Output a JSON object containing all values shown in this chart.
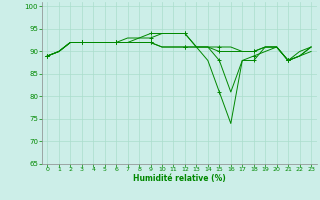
{
  "xlabel": "Humidité relative (%)",
  "bg_color": "#cceee8",
  "grid_color": "#aaddcc",
  "line_color": "#008800",
  "xlim": [
    -0.5,
    23.5
  ],
  "ylim": [
    65,
    101
  ],
  "yticks": [
    65,
    70,
    75,
    80,
    85,
    90,
    95,
    100
  ],
  "xticks": [
    0,
    1,
    2,
    3,
    4,
    5,
    6,
    7,
    8,
    9,
    10,
    11,
    12,
    13,
    14,
    15,
    16,
    17,
    18,
    19,
    20,
    21,
    22,
    23
  ],
  "series": [
    [
      89,
      90,
      92,
      92,
      92,
      92,
      92,
      92,
      92,
      92,
      91,
      91,
      91,
      91,
      91,
      88,
      81,
      88,
      89,
      90,
      91,
      88,
      89,
      90
    ],
    [
      89,
      90,
      92,
      92,
      92,
      92,
      92,
      93,
      93,
      94,
      94,
      94,
      94,
      91,
      91,
      90,
      90,
      90,
      90,
      91,
      91,
      88,
      90,
      91
    ],
    [
      89,
      90,
      92,
      92,
      92,
      92,
      92,
      92,
      93,
      93,
      94,
      94,
      94,
      91,
      91,
      91,
      91,
      90,
      90,
      91,
      91,
      88,
      89,
      91
    ],
    [
      89,
      90,
      92,
      92,
      92,
      92,
      92,
      92,
      92,
      92,
      91,
      91,
      91,
      91,
      88,
      81,
      74,
      88,
      88,
      91,
      91,
      88,
      89,
      91
    ]
  ]
}
